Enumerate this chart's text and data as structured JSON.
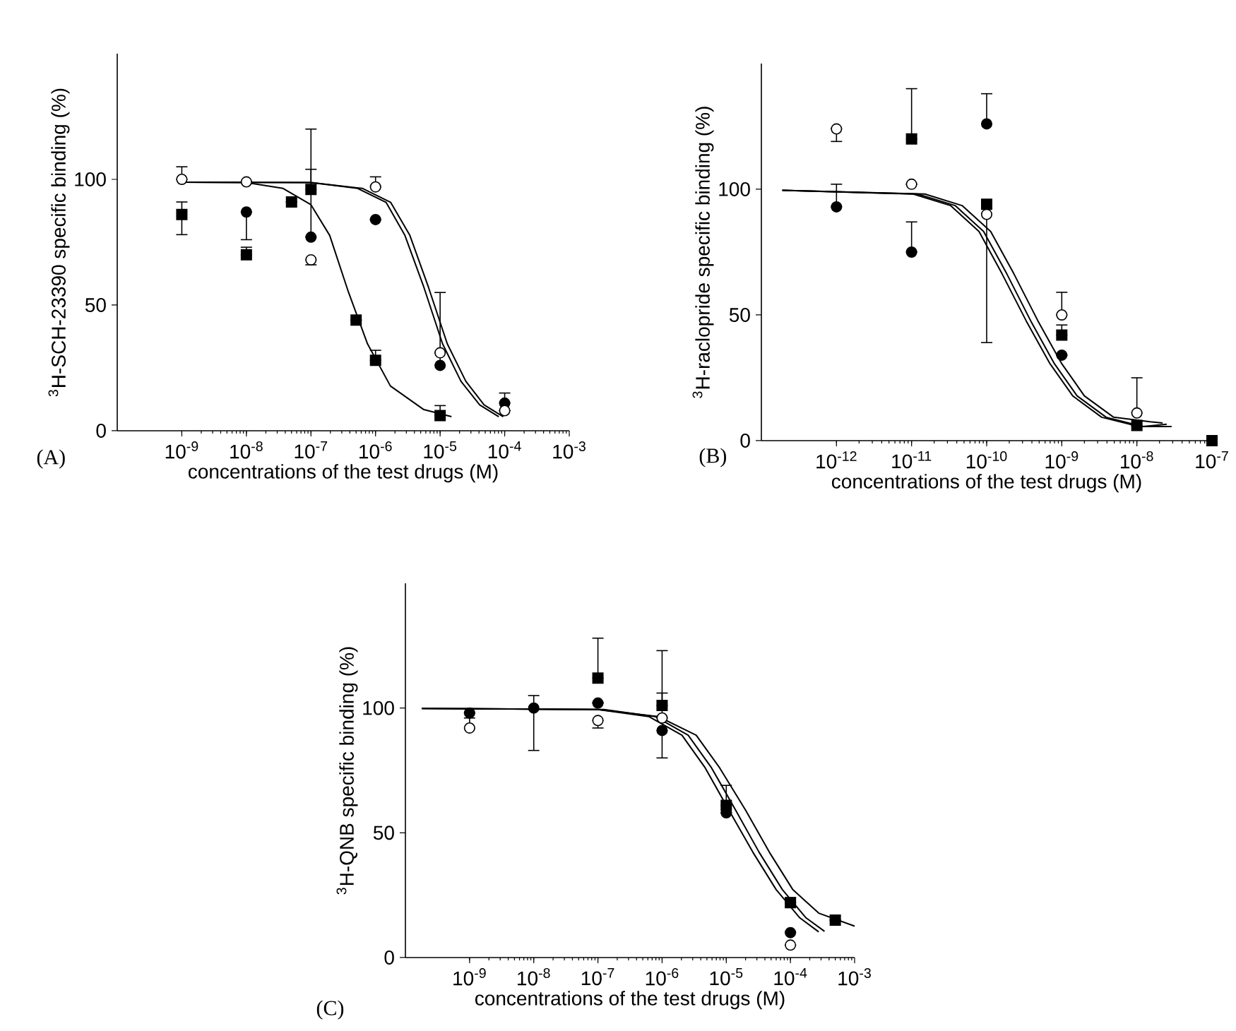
{
  "chart_data": [
    {
      "type": "scatter",
      "xlabel": "concentrations of the test drugs (M)",
      "ylabel": "$^{3}$H-SCH-23390 specific binding (%)",
      "annotations": [
        "(A)"
      ],
      "log": "x",
      "xlim": [
        1e-10,
        0.001
      ],
      "ylim": [
        0,
        150
      ],
      "xticks": [
        {
          "value": 1e-09,
          "label": "10$^{-9}$"
        },
        {
          "value": 1e-08,
          "label": "10$^{-8}$"
        },
        {
          "value": 1e-07,
          "label": "10$^{-7}$"
        },
        {
          "value": 1e-06,
          "label": "10$^{-6}$"
        },
        {
          "value": 1e-05,
          "label": "10$^{-5}$"
        },
        {
          "value": 0.0001,
          "label": "10$^{-4}$"
        },
        {
          "value": 0.001,
          "label": "10$^{-3}$"
        }
      ],
      "yticks": [
        0,
        50,
        100
      ],
      "series": [
        {
          "type": "line",
          "color": "#000000",
          "marker": "none",
          "x": [
            1e-09,
            1e-08,
            3.7e-08,
            1e-07,
            1.95e-07,
            3.8e-07,
            7.5e-07,
            1.7e-06,
            5.6e-06,
            1.5e-05
          ],
          "values": [
            98.9,
            98.7,
            96.4,
            89.9,
            77.7,
            55.2,
            34.6,
            17.8,
            8.4,
            5.6
          ]
        },
        {
          "type": "line",
          "color": "#000000",
          "marker": "none",
          "x": [
            1e-09,
            1e-07,
            5.3e-07,
            1.46e-06,
            2.85e-06,
            5.6e-06,
            1.09e-05,
            2.1e-05,
            4.1e-05,
            8.1e-05
          ],
          "values": [
            98.9,
            98.7,
            96.4,
            90.8,
            77.7,
            57.1,
            34.6,
            19.7,
            10.3,
            5.6
          ]
        },
        {
          "type": "line",
          "color": "#000000",
          "marker": "none",
          "x": [
            1e-09,
            1e-07,
            6.3e-07,
            1.72e-06,
            3.4e-06,
            6.6e-06,
            1.29e-05,
            2.5e-05,
            4.8e-05,
            9.5e-05
          ],
          "values": [
            98.9,
            98.7,
            96.4,
            90.8,
            77.7,
            57.1,
            34.6,
            19.7,
            10.3,
            5.6
          ]
        },
        {
          "color": "#000000",
          "marker": "square",
          "x": [
            1e-09,
            1e-08,
            5e-08,
            1e-07,
            5e-07,
            1e-06,
            1e-05
          ],
          "values": [
            86,
            70,
            91,
            96,
            44,
            28,
            6
          ],
          "errors": [
            [
              78,
              91
            ],
            [
              70,
              73
            ],
            null,
            [
              96,
              120
            ],
            null,
            [
              28,
              32
            ],
            [
              6,
              10
            ]
          ]
        },
        {
          "color": "#000000",
          "marker": "circle",
          "x": [
            1e-08,
            1e-07,
            1e-06,
            1e-05,
            0.0001
          ],
          "values": [
            87,
            77,
            84,
            26,
            11
          ],
          "errors": [
            [
              76,
              87
            ],
            [
              77,
              104
            ],
            null,
            [
              26,
              55
            ],
            [
              11,
              15
            ]
          ]
        },
        {
          "color": "#ffffff",
          "marker": "circle",
          "x": [
            1e-09,
            1e-08,
            1e-07,
            1e-06,
            1e-05,
            0.0001
          ],
          "values": [
            100,
            99,
            68,
            97,
            31,
            8
          ],
          "errors": [
            [
              100,
              105
            ],
            null,
            [
              66,
              68
            ],
            [
              97,
              101
            ],
            null,
            null
          ]
        }
      ]
    },
    {
      "type": "scatter",
      "xlabel": "concentrations of the test drugs (M)",
      "ylabel": "$^{3}$H-raclopride specific binding (%)",
      "annotations": [
        "(B)"
      ],
      "log": "x",
      "xlim": [
        1e-13,
        1e-07
      ],
      "ylim": [
        0,
        150
      ],
      "xticks": [
        {
          "value": 1e-12,
          "label": "10$^{-12}$"
        },
        {
          "value": 1e-11,
          "label": "10$^{-11}$"
        },
        {
          "value": 1e-10,
          "label": "10$^{-10}$"
        },
        {
          "value": 1e-09,
          "label": "10$^{-9}$"
        },
        {
          "value": 1e-08,
          "label": "10$^{-8}$"
        },
        {
          "value": 1e-07,
          "label": "10$^{-7}$"
        }
      ],
      "yticks": [
        0,
        50,
        100
      ],
      "series": [
        {
          "type": "line",
          "color": "#000000",
          "marker": "none",
          "x": [
            1.9e-13,
            1.05e-11,
            3.3e-11,
            7.9e-11,
            1.6e-10,
            3.35e-10,
            6.9e-10,
            1.4e-09,
            3.4e-09,
            1.07e-08,
            2.9e-08
          ],
          "values": [
            99.6,
            98.1,
            93.5,
            83.2,
            66.4,
            47.7,
            30.8,
            17.8,
            9.3,
            5.6,
            5.6
          ]
        },
        {
          "type": "line",
          "color": "#000000",
          "marker": "none",
          "x": [
            1.9e-13,
            1.2e-11,
            3.8e-11,
            9.1e-11,
            1.85e-10,
            3.85e-10,
            7.9e-10,
            1.6e-09,
            3.9e-09,
            1.2e-08,
            2.5e-08
          ],
          "values": [
            99.6,
            98.1,
            93.5,
            83.2,
            66.4,
            47.7,
            30.8,
            17.8,
            9.3,
            5.6,
            6.5
          ]
        },
        {
          "type": "line",
          "color": "#000000",
          "marker": "none",
          "x": [
            1.9e-13,
            1.5e-11,
            4.7e-11,
            1.13e-10,
            2.3e-10,
            4.8e-10,
            9.9e-10,
            2e-09,
            4.9e-09,
            1.5e-08,
            2.2e-08
          ],
          "values": [
            99.6,
            98.1,
            93.5,
            83.2,
            66.4,
            47.7,
            30.8,
            17.8,
            9.3,
            7.5,
            7
          ]
        },
        {
          "color": "#000000",
          "marker": "square",
          "x": [
            1e-11,
            1e-10,
            1e-09,
            1e-08,
            1e-07
          ],
          "values": [
            120,
            94,
            42,
            6,
            0
          ],
          "errors": [
            [
              120,
              140
            ],
            [
              39,
              94
            ],
            [
              42,
              46
            ],
            null,
            null
          ]
        },
        {
          "color": "#000000",
          "marker": "circle",
          "x": [
            1e-12,
            1e-11,
            1e-10,
            1e-09
          ],
          "values": [
            93,
            75,
            126,
            34
          ],
          "errors": [
            [
              93,
              102
            ],
            [
              75,
              87
            ],
            [
              126,
              138
            ],
            null
          ]
        },
        {
          "color": "#ffffff",
          "marker": "circle",
          "x": [
            1e-12,
            1e-11,
            1e-10,
            1e-09,
            1e-08
          ],
          "values": [
            124,
            102,
            90,
            50,
            11
          ],
          "errors": [
            [
              119,
              124
            ],
            null,
            null,
            [
              50,
              59
            ],
            [
              11,
              25
            ]
          ]
        }
      ]
    },
    {
      "type": "scatter",
      "xlabel": "concentrations of the test drugs (M)",
      "ylabel": "$^{3}$H-QNB specific binding (%)",
      "annotations": [
        "(C)"
      ],
      "log": "x",
      "xlim": [
        1e-10,
        0.001
      ],
      "ylim": [
        0,
        150
      ],
      "xticks": [
        {
          "value": 1e-09,
          "label": "10$^{-9}$"
        },
        {
          "value": 1e-08,
          "label": "10$^{-8}$"
        },
        {
          "value": 1e-07,
          "label": "10$^{-7}$"
        },
        {
          "value": 1e-06,
          "label": "10$^{-6}$"
        },
        {
          "value": 1e-05,
          "label": "10$^{-5}$"
        },
        {
          "value": 0.0001,
          "label": "10$^{-4}$"
        },
        {
          "value": 0.001,
          "label": "10$^{-3}$"
        }
      ],
      "yticks": [
        0,
        50,
        100
      ],
      "series": [
        {
          "type": "line",
          "color": "#000000",
          "marker": "none",
          "x": [
            1.8e-10,
            1e-07,
            6.2e-07,
            2.04e-06,
            4.7e-06,
            1.1e-05,
            2.6e-05,
            6e-05,
            0.00014,
            0.000276
          ],
          "values": [
            99.8,
            99.4,
            96.6,
            89.1,
            76,
            59.1,
            42.2,
            27.2,
            15.9,
            10.3
          ]
        },
        {
          "type": "line",
          "color": "#000000",
          "marker": "none",
          "x": [
            1.8e-10,
            1.25e-07,
            7.8e-07,
            2.55e-06,
            5.9e-06,
            1.4e-05,
            3.25e-05,
            7.5e-05,
            0.000175,
            0.00034
          ],
          "values": [
            99.8,
            99.4,
            96.6,
            89.1,
            76,
            59.1,
            42.2,
            27.2,
            15.9,
            10.5
          ]
        },
        {
          "type": "line",
          "color": "#000000",
          "marker": "none",
          "x": [
            1.8e-10,
            1e-07,
            8.7e-07,
            3.4e-06,
            7.9e-06,
            2e-05,
            4.7e-05,
            0.000109,
            0.000276,
            0.001
          ],
          "values": [
            99.8,
            99.4,
            96.6,
            89.1,
            76,
            59.1,
            42.2,
            27.2,
            17.8,
            12.6
          ]
        },
        {
          "color": "#000000",
          "marker": "square",
          "x": [
            1e-07,
            1e-06,
            1e-05,
            0.0001,
            0.0005
          ],
          "values": [
            112,
            101,
            61,
            22,
            15
          ],
          "errors": [
            [
              112,
              128
            ],
            [
              101,
              123
            ],
            [
              61,
              69
            ],
            [
              22,
              24
            ],
            null
          ]
        },
        {
          "color": "#000000",
          "marker": "circle",
          "x": [
            1e-09,
            1e-08,
            1e-07,
            1e-06,
            1e-05,
            0.0001
          ],
          "values": [
            98,
            100,
            102,
            91,
            58,
            10
          ],
          "errors": [
            null,
            [
              83,
              105
            ],
            null,
            [
              80,
              91
            ],
            null,
            null
          ]
        },
        {
          "color": "#ffffff",
          "marker": "circle",
          "x": [
            1e-09,
            1e-07,
            1e-06,
            0.0001
          ],
          "values": [
            92,
            95,
            96,
            5
          ],
          "errors": [
            [
              92,
              96
            ],
            [
              92,
              95
            ],
            [
              96,
              106
            ],
            null
          ]
        }
      ]
    }
  ]
}
